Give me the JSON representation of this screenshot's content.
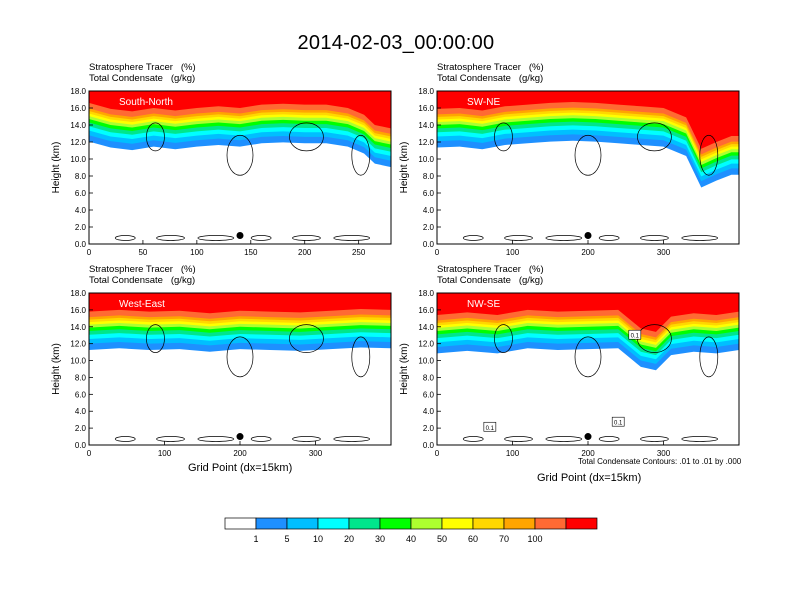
{
  "title": "2014-02-03_00:00:00",
  "header_line1": "Stratosphere Tracer   (%)",
  "header_line2": "Total Condensate   (g/kg)",
  "ylabel": "Height (km)",
  "xlabel": "Grid Point (dx=15km)",
  "contour_note": "Total Condensate Contours: .01 to .01 by .000",
  "colors": {
    "levels": [
      "#ffffff",
      "#1e90ff",
      "#00bfff",
      "#00ffff",
      "#00e68c",
      "#00ff00",
      "#adff2f",
      "#ffff00",
      "#ffd700",
      "#ffa500",
      "#ff6a33",
      "#ff0000"
    ]
  },
  "chart_data": [
    {
      "type": "heatmap",
      "panel_label": "South-North",
      "x_ticks": [
        0,
        50,
        100,
        150,
        200,
        250
      ],
      "xlim": [
        0,
        280
      ],
      "y_ticks": [
        "0.0",
        "2.0",
        "4.0",
        "6.0",
        "8.0",
        "10.0",
        "12.0",
        "14.0",
        "16.0",
        "18.0"
      ],
      "ylim": [
        0,
        18
      ],
      "marker": {
        "x": 140,
        "y": 1.0
      },
      "tropopause_km": [
        [
          0,
          16.2
        ],
        [
          20,
          15.5
        ],
        [
          40,
          15.2
        ],
        [
          60,
          15.6
        ],
        [
          80,
          15.3
        ],
        [
          100,
          15.6
        ],
        [
          120,
          15.8
        ],
        [
          140,
          15.6
        ],
        [
          160,
          16.0
        ],
        [
          180,
          16.1
        ],
        [
          200,
          16.0
        ],
        [
          220,
          16.0
        ],
        [
          240,
          15.6
        ],
        [
          255,
          14.8
        ],
        [
          265,
          13.6
        ],
        [
          280,
          13.2
        ]
      ]
    },
    {
      "type": "heatmap",
      "panel_label": "SW-NE",
      "x_ticks": [
        0,
        100,
        200,
        300
      ],
      "xlim": [
        0,
        400
      ],
      "y_ticks": [
        "0.0",
        "2.0",
        "4.0",
        "6.0",
        "8.0",
        "10.0",
        "12.0",
        "14.0",
        "16.0",
        "18.0"
      ],
      "ylim": [
        0,
        18
      ],
      "marker": {
        "x": 200,
        "y": 1.0
      },
      "tropopause_km": [
        [
          0,
          15.5
        ],
        [
          30,
          15.6
        ],
        [
          60,
          15.3
        ],
        [
          90,
          15.8
        ],
        [
          120,
          16.0
        ],
        [
          150,
          16.2
        ],
        [
          180,
          16.3
        ],
        [
          210,
          16.2
        ],
        [
          240,
          16.0
        ],
        [
          270,
          15.8
        ],
        [
          300,
          15.6
        ],
        [
          330,
          14.5
        ],
        [
          350,
          10.8
        ],
        [
          370,
          11.6
        ],
        [
          390,
          12.3
        ],
        [
          400,
          12.3
        ]
      ]
    },
    {
      "type": "heatmap",
      "panel_label": "West-East",
      "x_ticks": [
        0,
        100,
        200,
        300
      ],
      "xlim": [
        0,
        400
      ],
      "y_ticks": [
        "0.0",
        "2.0",
        "4.0",
        "6.0",
        "8.0",
        "10.0",
        "12.0",
        "14.0",
        "16.0",
        "18.0"
      ],
      "ylim": [
        0,
        18
      ],
      "marker": {
        "x": 200,
        "y": 1.0
      },
      "tropopause_km": [
        [
          0,
          15.4
        ],
        [
          40,
          15.6
        ],
        [
          80,
          15.4
        ],
        [
          120,
          15.5
        ],
        [
          160,
          15.2
        ],
        [
          200,
          15.5
        ],
        [
          240,
          15.4
        ],
        [
          280,
          15.3
        ],
        [
          320,
          15.5
        ],
        [
          360,
          15.7
        ],
        [
          400,
          15.6
        ]
      ]
    },
    {
      "type": "heatmap",
      "panel_label": "NW-SE",
      "x_ticks": [
        0,
        100,
        200,
        300
      ],
      "xlim": [
        0,
        400
      ],
      "y_ticks": [
        "0.0",
        "2.0",
        "4.0",
        "6.0",
        "8.0",
        "10.0",
        "12.0",
        "14.0",
        "16.0",
        "18.0"
      ],
      "ylim": [
        0,
        18
      ],
      "marker": {
        "x": 200,
        "y": 1.0
      },
      "contour_labels": [
        {
          "x": 70,
          "y": 2.1,
          "text": "0.1"
        },
        {
          "x": 240,
          "y": 2.7,
          "text": "0.1"
        },
        {
          "x": 262,
          "y": 13.0,
          "text": "0.1"
        }
      ],
      "tropopause_km": [
        [
          0,
          15.0
        ],
        [
          40,
          15.3
        ],
        [
          80,
          15.0
        ],
        [
          120,
          15.6
        ],
        [
          160,
          15.4
        ],
        [
          200,
          15.5
        ],
        [
          240,
          15.6
        ],
        [
          270,
          13.4
        ],
        [
          290,
          13.0
        ],
        [
          310,
          14.8
        ],
        [
          340,
          15.2
        ],
        [
          370,
          15.0
        ],
        [
          400,
          15.4
        ]
      ]
    }
  ],
  "colorbar": {
    "labels": [
      "1",
      "5",
      "10",
      "20",
      "30",
      "40",
      "50",
      "60",
      "70",
      "100"
    ]
  }
}
